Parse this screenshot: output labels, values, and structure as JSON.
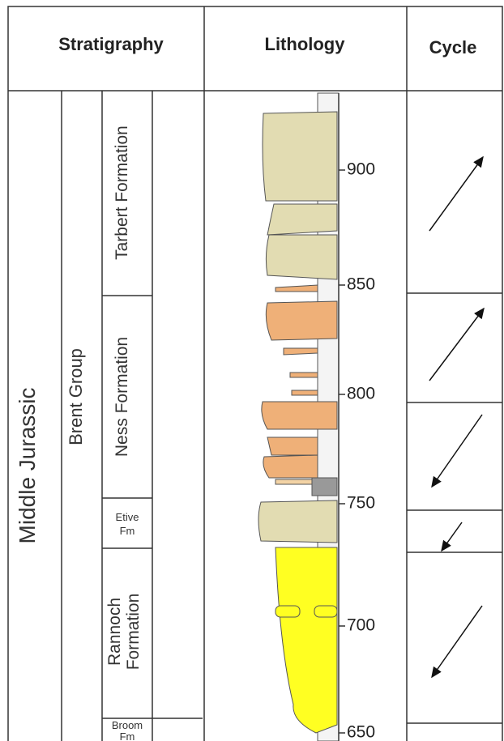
{
  "header": {
    "stratigraphy": "Stratigraphy",
    "lithology": "Lithology",
    "cycle": "Cycle"
  },
  "stratigraphy": {
    "series": "Middle Jurassic",
    "group": "Brent Group",
    "formations": [
      {
        "line1": "Tarbert Formation"
      },
      {
        "line1": "Ness Formation"
      },
      {
        "line1": "Etive",
        "line2": "Fm"
      },
      {
        "line1": "Rannoch",
        "line2": "Formation"
      },
      {
        "line1": "Broom",
        "line2": "Fm"
      }
    ]
  },
  "depths": [
    900,
    850,
    800,
    750,
    700,
    650
  ]
}
